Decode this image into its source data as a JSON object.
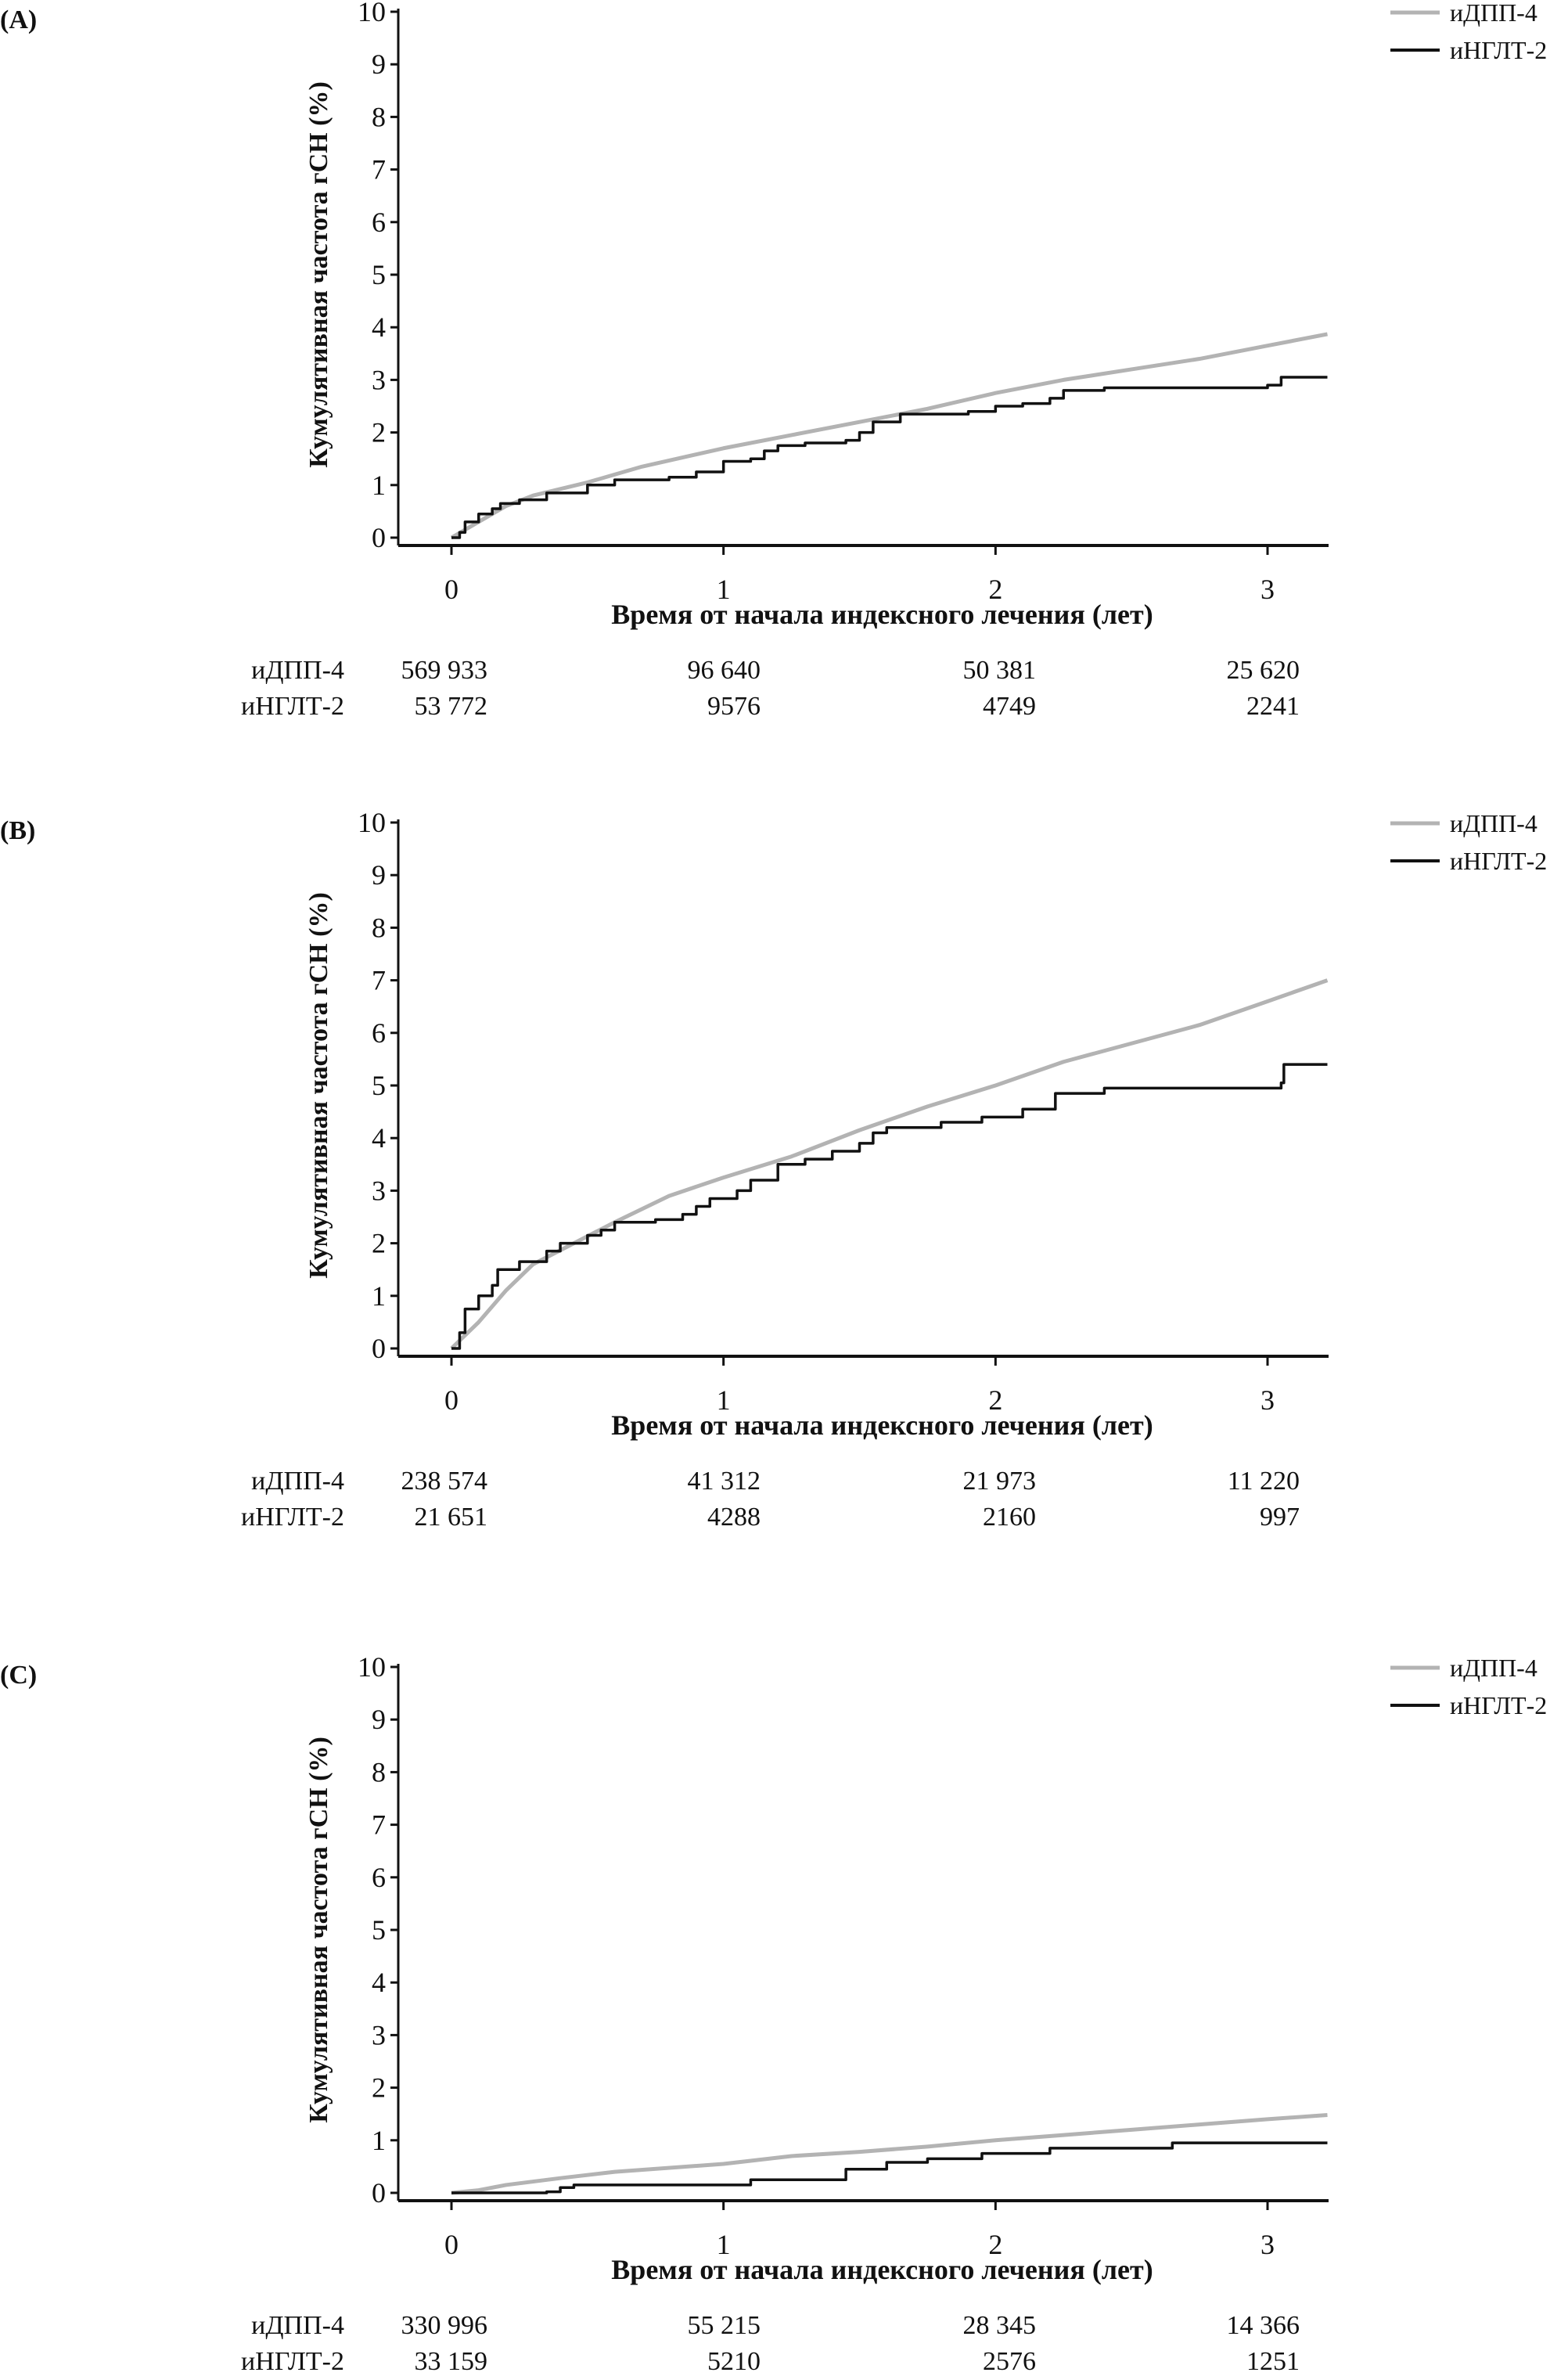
{
  "chart_data": [
    {
      "type": "line",
      "panel_label": "(A)",
      "ylabel": "Кумулятивная частота гСН (%)",
      "xlabel": "Время от начала индексного лечения (лет)",
      "ylim": [
        0,
        10
      ],
      "xlim": [
        0,
        3.22
      ],
      "yticks": [
        "0",
        "1",
        "2",
        "3",
        "4",
        "5",
        "6",
        "7",
        "8",
        "9",
        "10"
      ],
      "xticks": [
        "0",
        "1",
        "2",
        "3"
      ],
      "grid": false,
      "legend": "top-right",
      "series": [
        {
          "name": "иДПП-4",
          "color": "#b3b3b3",
          "step": false,
          "x": [
            0,
            0.1,
            0.2,
            0.3,
            0.5,
            0.7,
            1,
            1.25,
            1.5,
            1.75,
            2,
            2.25,
            2.5,
            2.75,
            3,
            3.22
          ],
          "y": [
            0,
            0.3,
            0.6,
            0.8,
            1.05,
            1.35,
            1.7,
            1.95,
            2.2,
            2.45,
            2.75,
            3.0,
            3.2,
            3.4,
            3.65,
            3.87
          ]
        },
        {
          "name": "иНГЛТ-2",
          "color": "#111111",
          "step": true,
          "x": [
            0,
            0.03,
            0.05,
            0.1,
            0.15,
            0.18,
            0.25,
            0.35,
            0.5,
            0.6,
            0.8,
            0.9,
            1.0,
            1.1,
            1.15,
            1.2,
            1.3,
            1.45,
            1.5,
            1.55,
            1.65,
            1.8,
            1.9,
            2.0,
            2.1,
            2.2,
            2.25,
            2.4,
            3.0,
            3.05,
            3.22
          ],
          "y": [
            0,
            0.1,
            0.3,
            0.45,
            0.55,
            0.65,
            0.72,
            0.85,
            1.0,
            1.1,
            1.15,
            1.25,
            1.45,
            1.5,
            1.65,
            1.75,
            1.8,
            1.85,
            2.0,
            2.2,
            2.35,
            2.35,
            2.4,
            2.5,
            2.55,
            2.65,
            2.8,
            2.85,
            2.9,
            3.05,
            3.05
          ]
        }
      ],
      "risk_table": {
        "rows": [
          {
            "label": "иДПП-4",
            "values": [
              "569 933",
              "96 640",
              "50 381",
              "25 620"
            ]
          },
          {
            "label": "иНГЛТ-2",
            "values": [
              "53 772",
              "9576",
              "4749",
              "2241"
            ]
          }
        ]
      }
    },
    {
      "type": "line",
      "panel_label": "(B)",
      "ylabel": "Кумулятивная частота гСН (%)",
      "xlabel": "Время от начала индексного лечения (лет)",
      "ylim": [
        0,
        10
      ],
      "xlim": [
        0,
        3.22
      ],
      "yticks": [
        "0",
        "1",
        "2",
        "3",
        "4",
        "5",
        "6",
        "7",
        "8",
        "9",
        "10"
      ],
      "xticks": [
        "0",
        "1",
        "2",
        "3"
      ],
      "grid": false,
      "legend": "top-right",
      "series": [
        {
          "name": "иДПП-4",
          "color": "#b3b3b3",
          "step": false,
          "x": [
            0,
            0.1,
            0.2,
            0.3,
            0.45,
            0.6,
            0.8,
            1,
            1.25,
            1.5,
            1.75,
            2,
            2.25,
            2.5,
            2.75,
            3,
            3.22
          ],
          "y": [
            0,
            0.5,
            1.1,
            1.6,
            2.0,
            2.4,
            2.9,
            3.25,
            3.65,
            4.15,
            4.6,
            5.0,
            5.45,
            5.8,
            6.15,
            6.6,
            7.0
          ]
        },
        {
          "name": "иНГЛТ-2",
          "color": "#111111",
          "step": true,
          "x": [
            0,
            0.03,
            0.05,
            0.1,
            0.15,
            0.17,
            0.25,
            0.35,
            0.4,
            0.5,
            0.55,
            0.6,
            0.75,
            0.85,
            0.9,
            0.95,
            1.05,
            1.1,
            1.2,
            1.3,
            1.4,
            1.5,
            1.55,
            1.6,
            1.8,
            1.95,
            2.1,
            2.22,
            2.4,
            3.0,
            3.05,
            3.06,
            3.22
          ],
          "y": [
            0,
            0.3,
            0.75,
            1.0,
            1.2,
            1.5,
            1.65,
            1.85,
            2.0,
            2.15,
            2.25,
            2.4,
            2.45,
            2.55,
            2.7,
            2.85,
            3.0,
            3.2,
            3.5,
            3.6,
            3.75,
            3.9,
            4.1,
            4.2,
            4.3,
            4.4,
            4.55,
            4.85,
            4.95,
            4.95,
            5.05,
            5.4,
            5.4
          ]
        }
      ],
      "risk_table": {
        "rows": [
          {
            "label": "иДПП-4",
            "values": [
              "238 574",
              "41 312",
              "21 973",
              "11 220"
            ]
          },
          {
            "label": "иНГЛТ-2",
            "values": [
              "21 651",
              "4288",
              "2160",
              "997"
            ]
          }
        ]
      }
    },
    {
      "type": "line",
      "panel_label": "(C)",
      "ylabel": "Кумулятивная частота гСН (%)",
      "xlabel": "Время от начала индексного лечения (лет)",
      "ylim": [
        0,
        10
      ],
      "xlim": [
        0,
        3.22
      ],
      "yticks": [
        "0",
        "1",
        "2",
        "3",
        "4",
        "5",
        "6",
        "7",
        "8",
        "9",
        "10"
      ],
      "xticks": [
        "0",
        "1",
        "2",
        "3"
      ],
      "grid": false,
      "legend": "top-right",
      "series": [
        {
          "name": "иДПП-4",
          "color": "#b3b3b3",
          "step": false,
          "x": [
            0,
            0.1,
            0.2,
            0.4,
            0.6,
            1,
            1.25,
            1.5,
            1.75,
            2,
            2.25,
            2.5,
            2.75,
            3,
            3.22
          ],
          "y": [
            0,
            0.05,
            0.15,
            0.28,
            0.4,
            0.55,
            0.7,
            0.78,
            0.88,
            1.0,
            1.1,
            1.2,
            1.3,
            1.4,
            1.48
          ]
        },
        {
          "name": "иНГЛТ-2",
          "color": "#111111",
          "step": true,
          "x": [
            0,
            0.35,
            0.4,
            0.45,
            1.1,
            1.45,
            1.6,
            1.75,
            1.95,
            2.2,
            2.65,
            3.22
          ],
          "y": [
            0,
            0.02,
            0.1,
            0.15,
            0.25,
            0.45,
            0.58,
            0.65,
            0.75,
            0.85,
            0.95,
            0.95
          ]
        }
      ],
      "risk_table": {
        "rows": [
          {
            "label": "иДПП-4",
            "values": [
              "330 996",
              "55 215",
              "28 345",
              "14 366"
            ]
          },
          {
            "label": "иНГЛТ-2",
            "values": [
              "33 159",
              "5210",
              "2576",
              "1251"
            ]
          }
        ]
      }
    }
  ]
}
